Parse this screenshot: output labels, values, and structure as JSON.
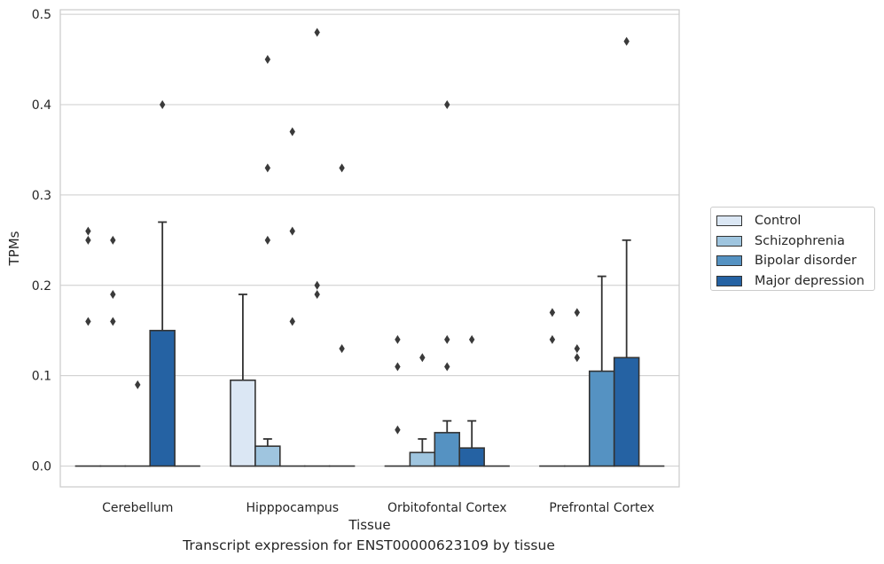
{
  "chart_data": {
    "type": "bar",
    "title": "",
    "caption": "Transcript expression for ENST00000623109 by tissue",
    "xlabel": "Tissue",
    "ylabel": "TPMs",
    "ylim": [
      -0.023,
      0.505
    ],
    "yticks": [
      "0.0",
      "0.1",
      "0.2",
      "0.3",
      "0.4",
      "0.5"
    ],
    "grid": "horizontal",
    "legend_position": "right",
    "categories": [
      "Cerebellum",
      "Hipppocampus",
      "Orbitofontal Cortex",
      "Prefrontal Cortex"
    ],
    "series": [
      {
        "name": "Control",
        "color": "#dbe7f4",
        "values": [
          0,
          0.095,
          0,
          0
        ],
        "error_upper": [
          null,
          0.19,
          null,
          null
        ],
        "outliers": [
          [
            0.26,
            0.25,
            0.16
          ],
          [],
          [
            0.14,
            0.11,
            0.04
          ],
          [
            0.17,
            0.14
          ]
        ]
      },
      {
        "name": "Schizophrenia",
        "color": "#9fc5df",
        "values": [
          0,
          0.022,
          0.015,
          0
        ],
        "error_upper": [
          null,
          0.03,
          0.03,
          null
        ],
        "outliers": [
          [
            0.25,
            0.19,
            0.16
          ],
          [
            0.45,
            0.33,
            0.25
          ],
          [
            0.12
          ],
          [
            0.17,
            0.13,
            0.12
          ]
        ]
      },
      {
        "name": "Bipolar disorder",
        "color": "#5592c2",
        "values": [
          0,
          0,
          0.037,
          0.105
        ],
        "error_upper": [
          null,
          null,
          0.05,
          0.21
        ],
        "outliers": [
          [
            0.09
          ],
          [
            0.37,
            0.26,
            0.16
          ],
          [
            0.4,
            0.14,
            0.11
          ],
          []
        ]
      },
      {
        "name": "Major depression",
        "color": "#2562a3",
        "values": [
          0.15,
          0,
          0.02,
          0.12
        ],
        "error_upper": [
          0.27,
          null,
          0.05,
          0.25
        ],
        "outliers": [
          [
            0.4
          ],
          [
            0.48,
            0.2,
            0.19
          ],
          [
            0.14
          ],
          [
            0.47
          ]
        ]
      },
      {
        "name": "",
        "color": "#2562a3",
        "values": [
          0,
          0,
          0,
          0
        ],
        "error_upper": [
          null,
          null,
          null,
          null
        ],
        "outliers": [
          [],
          [
            0.33,
            0.13
          ],
          [],
          []
        ]
      }
    ]
  }
}
